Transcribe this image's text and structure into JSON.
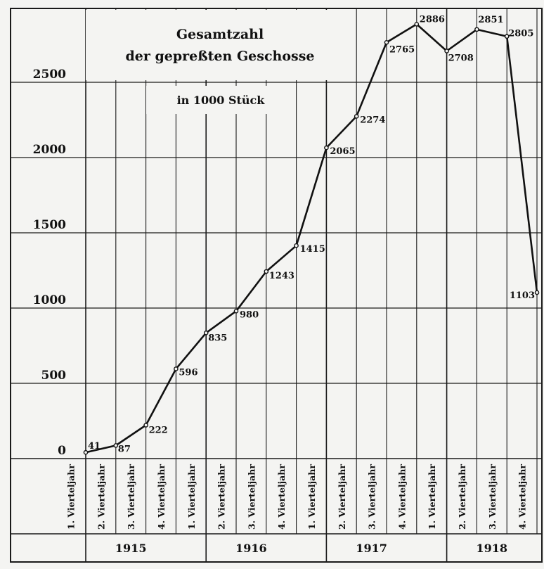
{
  "chart_data": {
    "type": "line",
    "title": "Gesamtzahl",
    "title_line2": "der gepreßten Geschosse",
    "subtitle": "in 1000 Stück",
    "quarter_label": "Vierteljahr",
    "categories": [
      "1. Vierteljahr",
      "2. Vierteljahr",
      "3. Vierteljahr",
      "4. Vierteljahr",
      "1. Vierteljahr",
      "2. Vierteljahr",
      "3. Vierteljahr",
      "4. Vierteljahr",
      "1. Vierteljahr",
      "2. Vierteljahr",
      "3. Vierteljahr",
      "4. Vierteljahr",
      "1. Vierteljahr",
      "2. Vierteljahr",
      "3. Vierteljahr",
      "4. Vierteljahr"
    ],
    "years": [
      "1915",
      "1916",
      "1917",
      "1918"
    ],
    "values": [
      41,
      87,
      222,
      596,
      835,
      980,
      1243,
      1415,
      2065,
      2274,
      2765,
      2886,
      2708,
      2851,
      2805,
      1103
    ],
    "data_labels": [
      "41",
      "87",
      "222",
      "596",
      "835",
      "980",
      "1243",
      "1415",
      "2065",
      "2274",
      "2765",
      "2886",
      "2708",
      "2851",
      "2805",
      "1103"
    ],
    "yticks": [
      0,
      500,
      1000,
      1500,
      2000,
      2500
    ],
    "ytick_labels": [
      "0",
      "500",
      "1000",
      "1500",
      "2000",
      "2500"
    ],
    "ylim": [
      0,
      3000
    ],
    "grid": true,
    "colors": {
      "line": "#111111",
      "background": "#f4f4f2",
      "grid": "#1a1a1a"
    }
  }
}
